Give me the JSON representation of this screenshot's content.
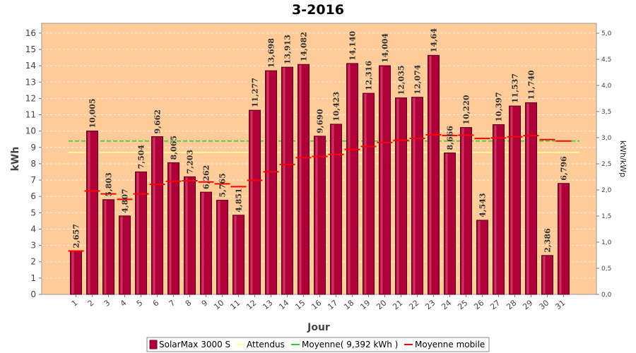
{
  "chart_data": {
    "type": "bar",
    "title": "3-2016",
    "xlabel": "Jour",
    "ylabel": "kWh",
    "y2label": "kWh/kWp",
    "ylim": [
      0,
      16.6
    ],
    "y2lim": [
      0,
      5.19
    ],
    "yticks": [
      0,
      1,
      2,
      3,
      4,
      5,
      6,
      7,
      8,
      9,
      10,
      11,
      12,
      13,
      14,
      15,
      16
    ],
    "y2ticks": [
      "0,0",
      "0,5",
      "1,0",
      "1,5",
      "2,0",
      "2,5",
      "3,0",
      "3,5",
      "4,0",
      "4,5",
      "5,0"
    ],
    "grid": true,
    "legend_position": "bottom",
    "background_color": "#ffcc99",
    "categories": [
      "1",
      "2",
      "3",
      "4",
      "5",
      "6",
      "7",
      "8",
      "9",
      "10",
      "11",
      "12",
      "13",
      "14",
      "15",
      "16",
      "17",
      "18",
      "19",
      "20",
      "21",
      "22",
      "23",
      "24",
      "25",
      "26",
      "27",
      "28",
      "29",
      "30",
      "31"
    ],
    "series": [
      {
        "name": "SolarMax 3000 S",
        "color": "#b0003a",
        "values": [
          2.657,
          10.005,
          5.803,
          4.807,
          7.504,
          9.662,
          8.065,
          7.203,
          6.262,
          5.765,
          4.851,
          11.277,
          13.698,
          13.913,
          14.082,
          9.69,
          10.423,
          14.14,
          12.316,
          14.004,
          12.035,
          12.074,
          14.64,
          8.666,
          10.22,
          4.543,
          10.397,
          11.537,
          11.74,
          2.386,
          6.796
        ],
        "labels": [
          "2,657",
          "10,005",
          "5,803",
          "4,807",
          "7,504",
          "9,662",
          "8,065",
          "7,203",
          "6,262",
          "5,765",
          "4,851",
          "11,277",
          "13,698",
          "13,913",
          "14,082",
          "9,690",
          "10,423",
          "14,140",
          "12,316",
          "14,004",
          "12,035",
          "12,074",
          "14,64",
          "8,666",
          "10,220",
          "4,543",
          "10,397",
          "11,537",
          "11,740",
          "2,386",
          "6,796"
        ]
      },
      {
        "name": "Attendus",
        "color": "#ffff99",
        "type": "line",
        "value": 8.7
      },
      {
        "name": "Moyenne( 9,392 kWh )",
        "color": "#33cc33",
        "type": "line",
        "value": 9.392
      },
      {
        "name": "Moyenne mobile",
        "color": "#ff0000",
        "type": "step",
        "values": [
          2.657,
          6.331,
          6.155,
          5.818,
          6.155,
          6.739,
          6.928,
          6.962,
          6.884,
          6.772,
          6.597,
          6.987,
          7.503,
          7.962,
          8.37,
          8.453,
          8.569,
          8.878,
          9.059,
          9.306,
          9.436,
          9.556,
          9.777,
          9.73,
          9.749,
          9.549,
          9.581,
          9.65,
          9.722,
          9.478,
          9.392
        ]
      }
    ]
  }
}
